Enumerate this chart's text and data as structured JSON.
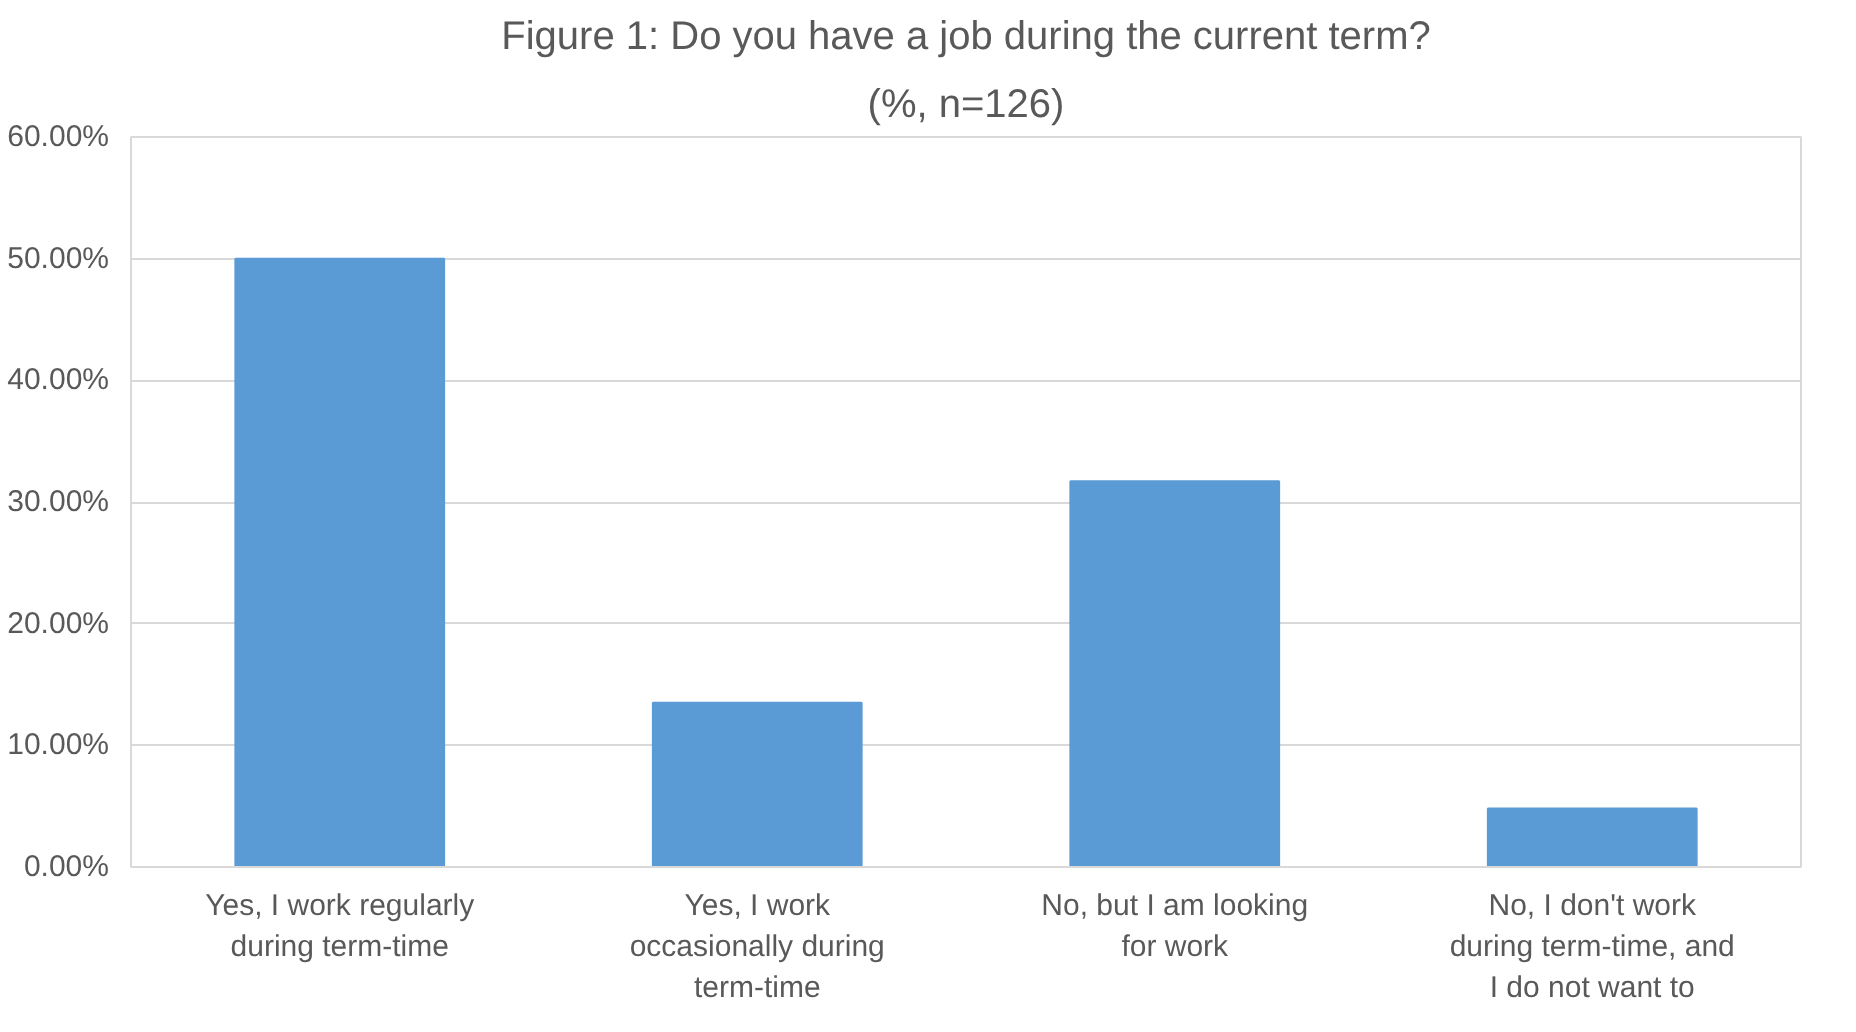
{
  "chart_data": {
    "type": "bar",
    "title": "Figure 1: Do you have a job during the current term?",
    "subtitle": "(%, n=126)",
    "categories": [
      "Yes, I work regularly during term-time",
      "Yes, I work occasionally during term-time",
      "No, but I am looking for work",
      "No, I don't work during term-time, and I do not want to"
    ],
    "values": [
      50.0,
      13.5,
      31.7,
      4.8
    ],
    "color": "#5b9bd5",
    "ylim": [
      0,
      60
    ],
    "yticks": [
      {
        "value": 0,
        "label": "0.00%"
      },
      {
        "value": 10,
        "label": "10.00%"
      },
      {
        "value": 20,
        "label": "20.00%"
      },
      {
        "value": 30,
        "label": "30.00%"
      },
      {
        "value": 40,
        "label": "40.00%"
      },
      {
        "value": 50,
        "label": "50.00%"
      },
      {
        "value": 60,
        "label": "60.00%"
      }
    ],
    "grid": "y"
  }
}
